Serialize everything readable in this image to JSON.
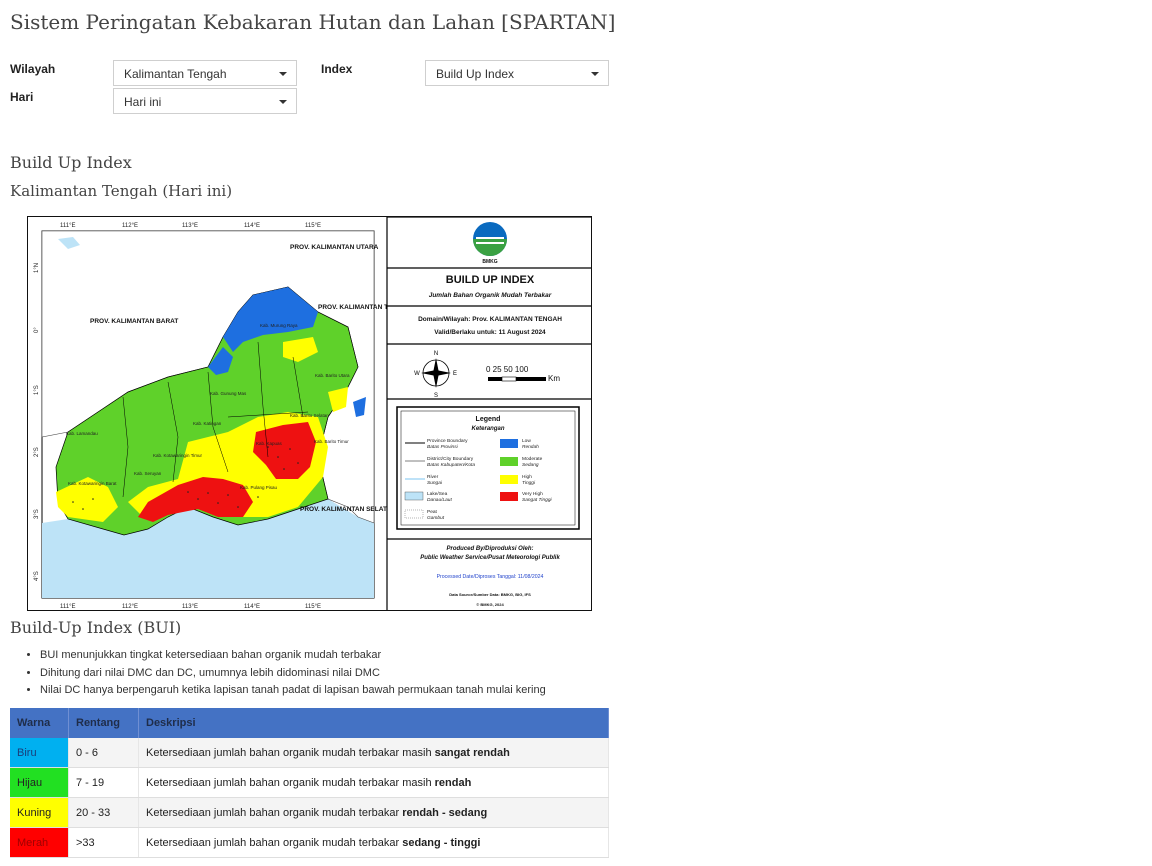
{
  "header": {
    "title": "Sistem Peringatan Kebakaran Hutan dan Lahan [SPARTAN]"
  },
  "form": {
    "wilayah_label": "Wilayah",
    "wilayah_value": "Kalimantan Tengah",
    "index_label": "Index",
    "index_value": "Build Up Index",
    "hari_label": "Hari",
    "hari_value": "Hari ini"
  },
  "result": {
    "title": "Build Up Index",
    "subtitle": "Kalimantan Tengah (Hari ini)"
  },
  "map": {
    "lon_ticks": [
      "111°E",
      "112°E",
      "113°E",
      "114°E",
      "115°E"
    ],
    "lat_ticks": [
      "1°N",
      "0°",
      "1°S",
      "2°S",
      "3°S",
      "4°S"
    ],
    "regions": {
      "prov_kalbar": "PROV. KALIMANTAN BARAT",
      "prov_kaltara": "PROV. KALIMANTAN UTARA",
      "prov_kaltim": "PROV. KALIMANTAN TIMUR",
      "prov_kalsel": "PROV. KALIMANTAN SELATAN"
    },
    "districts": [
      "Kab. Murung Raya",
      "Kab. Barito Utara",
      "Kab. Gunung Mas",
      "Kab. Katingan",
      "Kab. Lamandau",
      "Kab. Kotawaringin Timur",
      "Kab. Kotawaringin Barat",
      "Kab. Seruyan",
      "Kab. Pulang Pisau",
      "Kab. Kapuas",
      "Kab. Barito Timur",
      "Kab. Barito Selatan"
    ],
    "panel": {
      "logo_text": "BMKG",
      "title": "BUILD UP INDEX",
      "subtitle": "Jumlah Bahan Organik Mudah Terbakar",
      "domain": "Domain/Wilayah: Prov. KALIMANTAN TENGAH",
      "valid": "Valid/Berlaku untuk: 11 August 2024",
      "scale_text": "0  25 50      100",
      "scale_unit": "Km",
      "compass": [
        "N",
        "E",
        "S",
        "W"
      ],
      "legend_title": "Legend",
      "legend_subtitle": "Keterangan",
      "legend_items": [
        {
          "label": "Province Boundary",
          "sub": "Batas Provinsi"
        },
        {
          "label": "District/City Boundary",
          "sub": "Batas Kabupaten/Kota"
        },
        {
          "label": "River",
          "sub": "Sungai"
        },
        {
          "label": "Lake/Sea",
          "sub": "Danau/Laut"
        },
        {
          "label": "Peat",
          "sub": "Gambut"
        }
      ],
      "legend_classes": [
        {
          "label": "Low",
          "sub": "Rendah",
          "color": "#1e6fe0"
        },
        {
          "label": "Moderate",
          "sub": "Sedang",
          "color": "#5fd12a"
        },
        {
          "label": "High",
          "sub": "Tinggi",
          "color": "#ffff00"
        },
        {
          "label": "Very High",
          "sub": "Sangat Tinggi",
          "color": "#ee1111"
        }
      ],
      "produced_by": "Produced By/Diproduksi Oleh:",
      "producer": "Public Weather Service/Pusat Meteorologi Publik",
      "processed": "Processed Date/Diproses Tanggal: 11/08/2024",
      "data_source": "Data Source/Sumber Data: BMKG, BIG, IFS",
      "copyright": "© BMKG, 2024"
    }
  },
  "info": {
    "title": "Build-Up Index (BUI)",
    "notes": [
      "BUI menunjukkan tingkat ketersediaan bahan organik mudah terbakar",
      "Dihitung dari nilai DMC dan DC, umumnya lebih didominasi nilai DMC",
      "Nilai DC hanya berpengaruh ketika lapisan tanah padat di lapisan bawah permukaan tanah mulai kering"
    ]
  },
  "table": {
    "headers": [
      "Warna",
      "Rentang",
      "Deskripsi"
    ],
    "desc_prefix": "Ketersediaan jumlah bahan organik mudah terbakar ",
    "rows": [
      {
        "color_name": "Biru",
        "color": "#00b0f0",
        "range": "0 - 6",
        "desc_mid": "masih ",
        "desc_bold": "sangat rendah"
      },
      {
        "color_name": "Hijau",
        "color": "#22e022",
        "range": "7 - 19",
        "desc_mid": "masih ",
        "desc_bold": "rendah"
      },
      {
        "color_name": "Kuning",
        "color": "#ffff00",
        "range": "20 - 33",
        "desc_mid": "",
        "desc_bold": "rendah - sedang"
      },
      {
        "color_name": "Merah",
        "color": "#ff0000",
        "range": ">33",
        "desc_mid": "",
        "desc_bold": "sedang - tinggi"
      }
    ]
  }
}
